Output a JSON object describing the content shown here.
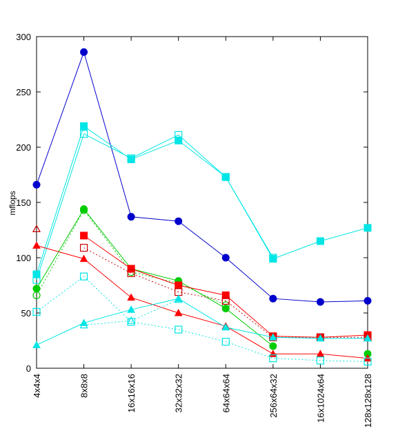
{
  "chart_data": {
    "type": "line",
    "title": "",
    "xlabel": "",
    "ylabel": "mflops",
    "ylim": [
      0,
      300
    ],
    "yticks": [
      0,
      50,
      100,
      150,
      200,
      250,
      300
    ],
    "grid": false,
    "legend": "none",
    "categories": [
      "4x4x4",
      "8x8x8",
      "16x16x16",
      "32x32x32",
      "64x64x64",
      "256x64x32",
      "16x1024x64",
      "128x128x128"
    ],
    "series": [
      {
        "color": "#0000cc",
        "marker": "circle",
        "filled": true,
        "dash": false,
        "values": [
          166,
          286,
          137,
          133,
          100,
          63,
          60,
          61
        ]
      },
      {
        "color": "#00e5e5",
        "marker": "square",
        "filled": true,
        "dash": false,
        "values": [
          85,
          219,
          189,
          206,
          173,
          99,
          115,
          127
        ]
      },
      {
        "color": "#00e5e5",
        "marker": "square",
        "filled": false,
        "dash": false,
        "values": [
          80,
          212,
          190,
          211,
          173,
          100,
          null,
          null
        ]
      },
      {
        "color": "#00cc00",
        "marker": "circle",
        "filled": true,
        "dash": false,
        "values": [
          72,
          144,
          90,
          79,
          54,
          20,
          null,
          13
        ]
      },
      {
        "color": "#00cc00",
        "marker": "circle",
        "filled": false,
        "dash": true,
        "values": [
          66,
          143,
          87,
          77,
          57,
          null,
          null,
          null
        ]
      },
      {
        "color": "#ff0000",
        "marker": "square",
        "filled": true,
        "dash": false,
        "values": [
          null,
          120,
          90,
          75,
          66,
          29,
          28,
          30
        ]
      },
      {
        "color": "#cc0000",
        "marker": "square",
        "filled": false,
        "dash": true,
        "values": [
          null,
          109,
          86,
          69,
          61,
          28,
          28,
          28
        ]
      },
      {
        "color": "#ff0000",
        "marker": "triangle",
        "filled": true,
        "dash": false,
        "values": [
          111,
          99,
          64,
          50,
          38,
          13,
          13,
          9
        ]
      },
      {
        "color": "#cc0000",
        "marker": "triangle",
        "filled": false,
        "dash": true,
        "values": [
          126,
          null,
          null,
          null,
          null,
          null,
          null,
          null
        ]
      },
      {
        "color": "#00e5e5",
        "marker": "triangle",
        "filled": true,
        "dash": false,
        "values": [
          21,
          41,
          53,
          63,
          37,
          28,
          27,
          27
        ]
      },
      {
        "color": "#00e5e5",
        "marker": "triangle",
        "filled": false,
        "dash": true,
        "values": [
          null,
          39,
          43,
          62,
          null,
          null,
          null,
          null
        ]
      },
      {
        "color": "#00e5e5",
        "marker": "square",
        "filled": false,
        "dash": true,
        "values": [
          51,
          83,
          42,
          35,
          24,
          9,
          7,
          6
        ]
      }
    ]
  }
}
